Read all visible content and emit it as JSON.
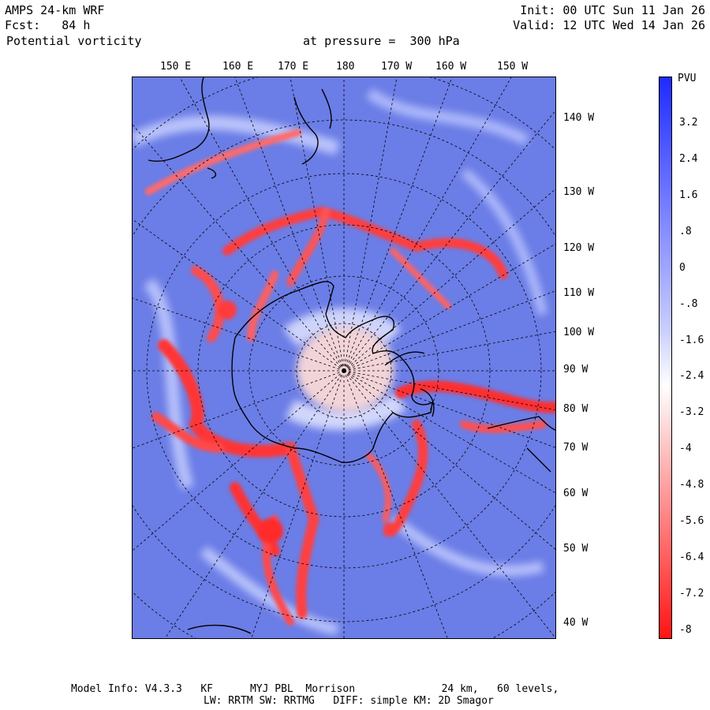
{
  "header": {
    "model": "AMPS 24-km WRF",
    "forecast": "Fcst:   84 h",
    "field": "Potential vorticity",
    "level": "at pressure =  300 hPa",
    "init": "Init: 00 UTC Sun 11 Jan 26",
    "valid": "Valid: 12 UTC Wed 14 Jan 26"
  },
  "map": {
    "top_longitudes": [
      "150 E",
      "160 E",
      "170 E",
      "180",
      "170 W",
      "160 W",
      "150 W"
    ],
    "right_longitudes": [
      "140 W",
      "130 W",
      "120 W",
      "110 W",
      "100 W",
      "90 W",
      "80 W",
      "70 W",
      "60 W",
      "50 W",
      "40 W"
    ]
  },
  "colorbar": {
    "unit": "PVU",
    "labels": [
      "3.2",
      "2.4",
      "1.6",
      ".8",
      "0",
      "-.8",
      "-1.6",
      "-2.4",
      "-3.2",
      "-4",
      "-4.8",
      "-5.6",
      "-6.4",
      "-7.2",
      "-8"
    ],
    "top_color": "#1f2bff",
    "mid_color": "#ffffff",
    "bottom_color": "#ff1414"
  },
  "footer": {
    "line1": "Model Info: V4.3.3   KF      MYJ PBL  Morrison              24 km,   60 levels,",
    "line2": "LW: RRTM SW: RRTMG   DIFF: simple KM: 2D Smagor"
  }
}
